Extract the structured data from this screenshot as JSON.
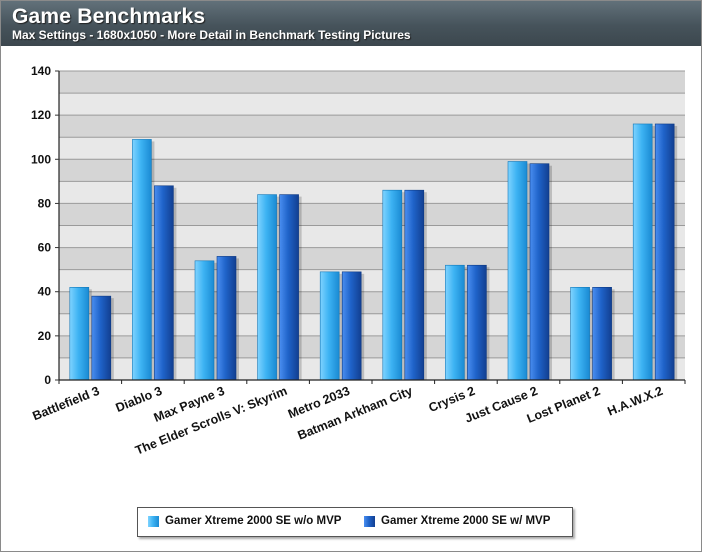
{
  "header": {
    "title": "Game Benchmarks",
    "subtitle": "Max Settings - 1680x1050 - More Detail in Benchmark Testing Pictures"
  },
  "colors": {
    "series1": "#42b4f2",
    "series2": "#1f63c9",
    "band": "#d5d5d5",
    "plot_bg": "#e8e8e8"
  },
  "chart_data": {
    "type": "bar",
    "title": "Game Benchmarks",
    "subtitle": "Max Settings - 1680x1050 - More Detail in Benchmark Testing Pictures",
    "categories": [
      "Battlefield 3",
      "Diablo 3",
      "Max Payne 3",
      "The Elder Scrolls V: Skyrim",
      "Metro 2033",
      "Batman Arkham City",
      "Crysis 2",
      "Just Cause 2",
      "Lost Planet 2",
      "H.A.W.X.2"
    ],
    "series": [
      {
        "name": "Gamer Xtreme 2000 SE w/o MVP",
        "values": [
          42,
          109,
          54,
          84,
          49,
          86,
          52,
          99,
          42,
          116
        ]
      },
      {
        "name": "Gamer Xtreme 2000 SE w/ MVP",
        "values": [
          38,
          88,
          56,
          84,
          49,
          86,
          52,
          98,
          42,
          116
        ]
      }
    ],
    "ylim": [
      0,
      140
    ],
    "yticks": [
      0,
      20,
      40,
      60,
      80,
      100,
      120,
      140
    ],
    "xlabel": "",
    "ylabel": "",
    "grid": true,
    "legend_position": "bottom"
  }
}
